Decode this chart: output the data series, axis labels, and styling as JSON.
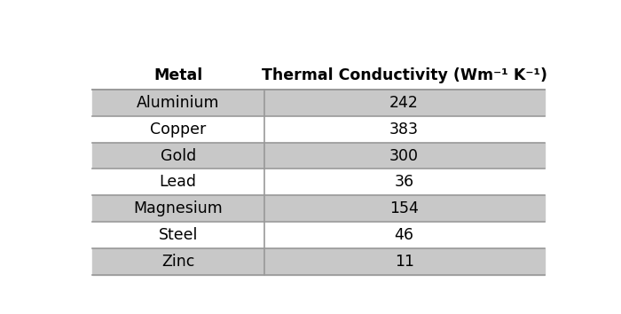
{
  "col1_header": "Metal",
  "col2_header": "Thermal Conductivity (Wm⁻¹ K⁻¹)",
  "rows": [
    [
      "Aluminium",
      "242"
    ],
    [
      "Copper",
      "383"
    ],
    [
      "Gold",
      "300"
    ],
    [
      "Lead",
      "36"
    ],
    [
      "Magnesium",
      "154"
    ],
    [
      "Steel",
      "46"
    ],
    [
      "Zinc",
      "11"
    ]
  ],
  "shaded_row_color": "#c8c8c8",
  "white_row_color": "#ffffff",
  "header_bg": "#ffffff",
  "border_color": "#999999",
  "text_color": "#000000",
  "header_fontsize": 12.5,
  "cell_fontsize": 12.5,
  "col_split": 0.38,
  "fig_bg": "#ffffff",
  "shaded_rows": [
    0,
    2,
    4,
    6
  ]
}
